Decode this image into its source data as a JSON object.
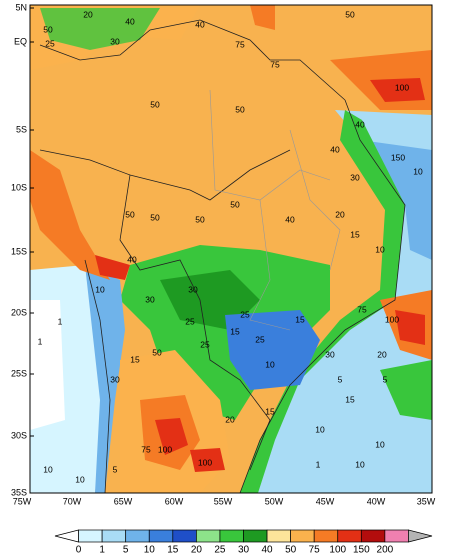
{
  "lat_labels": [
    "5N",
    "EQ",
    "5S",
    "10S",
    "15S",
    "20S",
    "25S",
    "30S",
    "35S"
  ],
  "lon_labels": [
    "75W",
    "70W",
    "65W",
    "60W",
    "55W",
    "50W",
    "45W",
    "40W",
    "35W"
  ],
  "map_labels": [
    "50",
    "20",
    "40",
    "30",
    "25",
    "75",
    "50",
    "40",
    "100",
    "75",
    "50",
    "50",
    "40",
    "150",
    "40",
    "30",
    "10",
    "20",
    "50",
    "50",
    "50",
    "50",
    "40",
    "15",
    "10",
    "30",
    "25",
    "15",
    "25",
    "25",
    "30",
    "10",
    "100",
    "75",
    "20",
    "15",
    "10",
    "5",
    "5",
    "10",
    "10",
    "1",
    "1",
    "1",
    "10",
    "15",
    "30",
    "50",
    "25",
    "100",
    "100",
    "75",
    "40",
    "30",
    "15",
    "10",
    "20",
    "5",
    "15",
    "10"
  ],
  "colorbar": {
    "labels": [
      0,
      1,
      5,
      10,
      15,
      20,
      25,
      30,
      40,
      50,
      75,
      100,
      150,
      200
    ],
    "colors": [
      "#ffffff",
      "#d6f5ff",
      "#a9dcf5",
      "#6fb3ea",
      "#3a7fdc",
      "#1f4fc8",
      "#8de38a",
      "#39c63c",
      "#1e9a22",
      "#fde49a",
      "#fbb24d",
      "#f57b25",
      "#e33015",
      "#b30d0d",
      "#f080b0",
      "#b4b4b4"
    ]
  }
}
